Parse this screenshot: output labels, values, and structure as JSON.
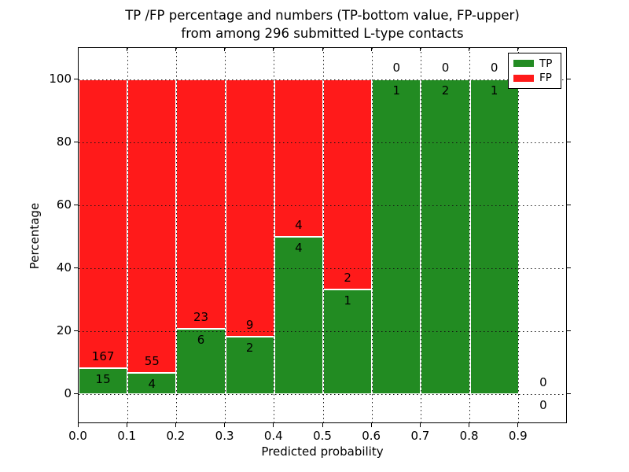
{
  "title": {
    "line1": "TP /FP percentage and numbers (TP-bottom value, FP-upper)",
    "line2": "from among 296 submitted L-type contacts"
  },
  "axes": {
    "xlabel": "Predicted probability",
    "ylabel": "Percentage",
    "x_tick_labels": [
      "0.0",
      "0.1",
      "0.2",
      "0.3",
      "0.4",
      "0.5",
      "0.6",
      "0.7",
      "0.8",
      "0.9"
    ],
    "x_tick_values": [
      0.0,
      0.1,
      0.2,
      0.3,
      0.4,
      0.5,
      0.6,
      0.7,
      0.8,
      0.9
    ],
    "y_tick_labels": [
      "0",
      "20",
      "40",
      "60",
      "80",
      "100"
    ],
    "y_tick_values": [
      0,
      20,
      40,
      60,
      80,
      100
    ],
    "xlim": [
      0.0,
      1.0
    ],
    "ylim": [
      -9.5,
      110
    ],
    "grid_style": "dotted"
  },
  "legend": {
    "position": "upper right",
    "items": [
      {
        "label": "TP",
        "color": "#228b22"
      },
      {
        "label": "FP",
        "color": "#ff1a1a"
      }
    ]
  },
  "colors": {
    "tp": "#228b22",
    "fp": "#ff1a1a",
    "bar_edge": "#ffffff",
    "grid": "#141414",
    "text": "#000000"
  },
  "chart_data": {
    "type": "bar",
    "stacked": true,
    "normalized_to_percent": true,
    "title": "TP /FP percentage and numbers (TP-bottom value, FP-upper) from among 296 submitted L-type contacts",
    "xlabel": "Predicted probability",
    "ylabel": "Percentage",
    "bin_width": 0.1,
    "bin_edges": [
      0.0,
      0.1,
      0.2,
      0.3,
      0.4,
      0.5,
      0.6,
      0.7,
      0.8,
      0.9,
      1.0
    ],
    "categories": [
      "0.0-0.1",
      "0.1-0.2",
      "0.2-0.3",
      "0.3-0.4",
      "0.4-0.5",
      "0.5-0.6",
      "0.6-0.7",
      "0.7-0.8",
      "0.8-0.9",
      "0.9-1.0"
    ],
    "series": [
      {
        "name": "TP",
        "values": [
          15,
          4,
          6,
          2,
          4,
          1,
          1,
          2,
          1,
          0
        ]
      },
      {
        "name": "FP",
        "values": [
          167,
          55,
          23,
          9,
          4,
          2,
          0,
          0,
          0,
          0
        ]
      }
    ],
    "tp_percent": [
      8.24,
      6.78,
      20.69,
      18.18,
      50.0,
      33.33,
      100.0,
      100.0,
      100.0,
      0.0
    ],
    "total_contacts": 296,
    "label_offset_units": 3.6,
    "legend_position": "upper right",
    "grid": true,
    "ylim": [
      -9.5,
      110
    ]
  }
}
